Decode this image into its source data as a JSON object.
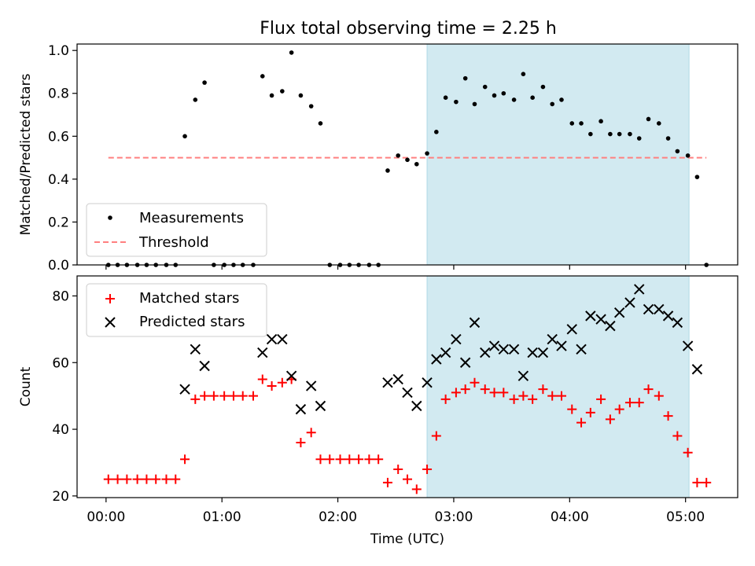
{
  "figure_title": "Flux total observing time = 2.25 h",
  "colors": {
    "shade": "#add8e6",
    "measure": "#000000",
    "threshold": "#ff8080",
    "matched": "#ff0000",
    "predicted": "#000000",
    "axes": "#000000"
  },
  "chart_data": [
    {
      "type": "scatter",
      "title": "Flux total observing time = 2.25 h",
      "xlabel": "",
      "ylabel": "Matched/Predicted stars",
      "xlim": [
        -0.25,
        5.45
      ],
      "ylim": [
        0.0,
        1.03
      ],
      "yticks": [
        0.0,
        0.2,
        0.4,
        0.6,
        0.8,
        1.0
      ],
      "ytick_labels": [
        "0.0",
        "0.2",
        "0.4",
        "0.6",
        "0.8",
        "1.0"
      ],
      "xticks": [
        0,
        1,
        2,
        3,
        4,
        5
      ],
      "shaded_span": [
        2.77,
        5.03
      ],
      "legend": {
        "position": "lower-left",
        "entries": [
          "Measurements",
          "Threshold"
        ]
      },
      "series": [
        {
          "name": "Measurements",
          "x": [
            0.02,
            0.1,
            0.18,
            0.27,
            0.35,
            0.43,
            0.52,
            0.6,
            0.68,
            0.77,
            0.85,
            0.93,
            1.02,
            1.1,
            1.18,
            1.27,
            1.35,
            1.43,
            1.52,
            1.6,
            1.68,
            1.77,
            1.85,
            1.93,
            2.02,
            2.1,
            2.18,
            2.27,
            2.35,
            2.43,
            2.52,
            2.6,
            2.68,
            2.77,
            2.85,
            2.93,
            3.02,
            3.1,
            3.18,
            3.27,
            3.35,
            3.43,
            3.52,
            3.6,
            3.68,
            3.77,
            3.85,
            3.93,
            4.02,
            4.1,
            4.18,
            4.27,
            4.35,
            4.43,
            4.52,
            4.6,
            4.68,
            4.77,
            4.85,
            4.93,
            5.02,
            5.1,
            5.18
          ],
          "y": [
            0.0,
            0.0,
            0.0,
            0.0,
            0.0,
            0.0,
            0.0,
            0.0,
            0.6,
            0.77,
            0.85,
            0.0,
            0.0,
            0.0,
            0.0,
            0.0,
            0.88,
            0.79,
            0.81,
            0.99,
            0.79,
            0.74,
            0.66,
            0.0,
            0.0,
            0.0,
            0.0,
            0.0,
            0.0,
            0.44,
            0.51,
            0.49,
            0.47,
            0.52,
            0.62,
            0.78,
            0.76,
            0.87,
            0.75,
            0.83,
            0.79,
            0.8,
            0.77,
            0.89,
            0.78,
            0.83,
            0.75,
            0.77,
            0.66,
            0.66,
            0.61,
            0.67,
            0.61,
            0.61,
            0.61,
            0.59,
            0.68,
            0.66,
            0.59,
            0.53,
            0.51,
            0.41,
            0.0
          ]
        },
        {
          "name": "Threshold",
          "x": [
            0.02,
            5.18
          ],
          "y": [
            0.5,
            0.5
          ]
        }
      ]
    },
    {
      "type": "scatter",
      "title": "",
      "xlabel": "Time (UTC)",
      "ylabel": "Count",
      "xlim": [
        -0.25,
        5.45
      ],
      "ylim": [
        19.5,
        86.0
      ],
      "yticks": [
        20,
        40,
        60,
        80
      ],
      "ytick_labels": [
        "20",
        "40",
        "60",
        "80"
      ],
      "xticks": [
        0,
        1,
        2,
        3,
        4,
        5
      ],
      "xtick_labels": [
        "00:00",
        "01:00",
        "02:00",
        "03:00",
        "04:00",
        "05:00"
      ],
      "shaded_span": [
        2.77,
        5.03
      ],
      "legend": {
        "position": "top-left",
        "entries": [
          "Matched stars",
          "Predicted stars"
        ]
      },
      "series": [
        {
          "name": "Matched stars",
          "x": [
            0.02,
            0.1,
            0.18,
            0.27,
            0.35,
            0.43,
            0.52,
            0.6,
            0.68,
            0.77,
            0.85,
            0.93,
            1.02,
            1.1,
            1.18,
            1.27,
            1.35,
            1.43,
            1.52,
            1.6,
            1.68,
            1.77,
            1.85,
            1.93,
            2.02,
            2.1,
            2.18,
            2.27,
            2.35,
            2.43,
            2.52,
            2.6,
            2.68,
            2.77,
            2.85,
            2.93,
            3.02,
            3.1,
            3.18,
            3.27,
            3.35,
            3.43,
            3.52,
            3.6,
            3.68,
            3.77,
            3.85,
            3.93,
            4.02,
            4.1,
            4.18,
            4.27,
            4.35,
            4.43,
            4.52,
            4.6,
            4.68,
            4.77,
            4.85,
            4.93,
            5.02,
            5.1,
            5.18
          ],
          "y": [
            25,
            25,
            25,
            25,
            25,
            25,
            25,
            25,
            31,
            49,
            50,
            50,
            50,
            50,
            50,
            50,
            55,
            53,
            54,
            55,
            36,
            39,
            31,
            31,
            31,
            31,
            31,
            31,
            31,
            24,
            28,
            25,
            22,
            28,
            38,
            49,
            51,
            52,
            54,
            52,
            51,
            51,
            49,
            50,
            49,
            52,
            50,
            50,
            46,
            42,
            45,
            49,
            43,
            46,
            48,
            48,
            52,
            50,
            44,
            38,
            33,
            24,
            24
          ]
        },
        {
          "name": "Predicted stars",
          "x": [
            0.68,
            0.77,
            0.85,
            1.35,
            1.43,
            1.52,
            1.6,
            1.68,
            1.77,
            1.85,
            2.43,
            2.52,
            2.6,
            2.68,
            2.77,
            2.85,
            2.93,
            3.02,
            3.1,
            3.18,
            3.27,
            3.35,
            3.43,
            3.52,
            3.6,
            3.68,
            3.77,
            3.85,
            3.93,
            4.02,
            4.1,
            4.18,
            4.27,
            4.35,
            4.43,
            4.52,
            4.6,
            4.68,
            4.77,
            4.85,
            4.93,
            5.02,
            5.1
          ],
          "y": [
            52,
            64,
            59,
            63,
            67,
            67,
            56,
            46,
            53,
            47,
            54,
            55,
            51,
            47,
            54,
            61,
            63,
            67,
            60,
            72,
            63,
            65,
            64,
            64,
            56,
            63,
            63,
            67,
            65,
            70,
            64,
            74,
            73,
            71,
            75,
            78,
            82,
            76,
            76,
            74,
            72,
            65,
            58
          ]
        }
      ]
    }
  ]
}
